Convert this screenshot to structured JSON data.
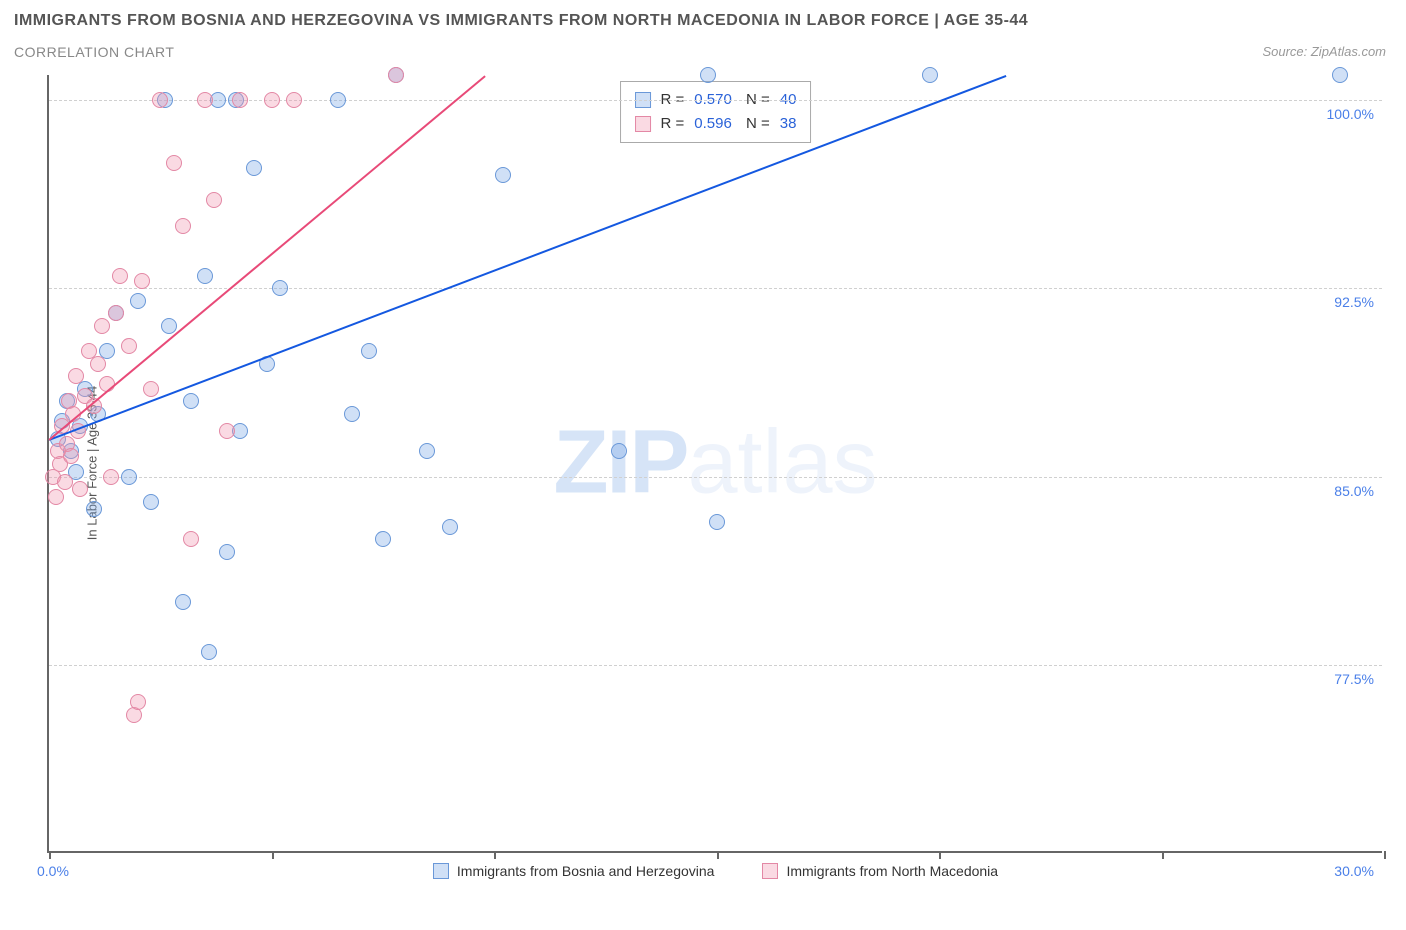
{
  "title": "IMMIGRANTS FROM BOSNIA AND HERZEGOVINA VS IMMIGRANTS FROM NORTH MACEDONIA IN LABOR FORCE | AGE 35-44",
  "subtitle": "CORRELATION CHART",
  "source": "Source: ZipAtlas.com",
  "yaxis_title": "In Labor Force | Age 35-44",
  "watermark_a": "ZIP",
  "watermark_b": "atlas",
  "chart": {
    "background_color": "#ffffff",
    "axis_color": "#666666",
    "grid_color": "#d0d0d0",
    "tick_label_color": "#4a7fe8",
    "xlim": [
      0.0,
      30.0
    ],
    "ylim": [
      70.0,
      101.0
    ],
    "x_ticks": [
      0.0,
      5.0,
      10.0,
      15.0,
      20.0,
      25.0,
      30.0
    ],
    "y_gridlines": [
      77.5,
      85.0,
      92.5,
      100.0
    ],
    "y_labels": [
      "77.5%",
      "85.0%",
      "92.5%",
      "100.0%"
    ],
    "x_min_label": "0.0%",
    "x_max_label": "30.0%",
    "point_radius": 8,
    "point_stroke_width": 1.5
  },
  "series": [
    {
      "id": "bosnia",
      "name": "Immigrants from Bosnia and Herzegovina",
      "fill": "rgba(120,165,230,0.35)",
      "stroke": "#6a98d8",
      "line_color": "#1458e0",
      "R": "0.570",
      "N": "40",
      "trend": {
        "x1": 0.0,
        "y1": 86.5,
        "x2": 21.5,
        "y2": 101.0
      },
      "points": [
        [
          0.2,
          86.5
        ],
        [
          0.3,
          87.2
        ],
        [
          0.5,
          86.0
        ],
        [
          0.4,
          88.0
        ],
        [
          0.6,
          85.2
        ],
        [
          0.7,
          87.0
        ],
        [
          0.8,
          88.5
        ],
        [
          1.0,
          83.7
        ],
        [
          1.1,
          87.5
        ],
        [
          1.3,
          90.0
        ],
        [
          1.5,
          91.5
        ],
        [
          1.8,
          85.0
        ],
        [
          2.0,
          92.0
        ],
        [
          2.3,
          84.0
        ],
        [
          2.6,
          100.0
        ],
        [
          2.7,
          91.0
        ],
        [
          3.0,
          80.0
        ],
        [
          3.2,
          88.0
        ],
        [
          3.5,
          93.0
        ],
        [
          3.6,
          78.0
        ],
        [
          3.8,
          100.0
        ],
        [
          4.0,
          82.0
        ],
        [
          4.2,
          100.0
        ],
        [
          4.3,
          86.8
        ],
        [
          4.6,
          97.3
        ],
        [
          4.9,
          89.5
        ],
        [
          5.2,
          92.5
        ],
        [
          6.5,
          100.0
        ],
        [
          6.8,
          87.5
        ],
        [
          7.2,
          90.0
        ],
        [
          7.5,
          82.5
        ],
        [
          7.8,
          101.0
        ],
        [
          8.5,
          86.0
        ],
        [
          9.0,
          83.0
        ],
        [
          10.2,
          97.0
        ],
        [
          12.8,
          86.0
        ],
        [
          14.8,
          101.0
        ],
        [
          15.0,
          83.2
        ],
        [
          19.8,
          101.0
        ],
        [
          29.0,
          101.0
        ]
      ]
    },
    {
      "id": "macedonia",
      "name": "Immigrants from North Macedonia",
      "fill": "rgba(240,150,175,0.35)",
      "stroke": "#e388a5",
      "line_color": "#e84a78",
      "R": "0.596",
      "N": "38",
      "trend": {
        "x1": 0.0,
        "y1": 86.5,
        "x2": 9.8,
        "y2": 101.0
      },
      "points": [
        [
          0.1,
          85.0
        ],
        [
          0.15,
          84.2
        ],
        [
          0.2,
          86.0
        ],
        [
          0.25,
          85.5
        ],
        [
          0.3,
          87.0
        ],
        [
          0.35,
          84.8
        ],
        [
          0.4,
          86.3
        ],
        [
          0.45,
          88.0
        ],
        [
          0.5,
          85.8
        ],
        [
          0.55,
          87.5
        ],
        [
          0.6,
          89.0
        ],
        [
          0.65,
          86.8
        ],
        [
          0.7,
          84.5
        ],
        [
          0.8,
          88.2
        ],
        [
          0.9,
          90.0
        ],
        [
          1.0,
          87.8
        ],
        [
          1.1,
          89.5
        ],
        [
          1.2,
          91.0
        ],
        [
          1.3,
          88.7
        ],
        [
          1.4,
          85.0
        ],
        [
          1.5,
          91.5
        ],
        [
          1.6,
          93.0
        ],
        [
          1.8,
          90.2
        ],
        [
          1.9,
          75.5
        ],
        [
          2.1,
          92.8
        ],
        [
          2.0,
          76.0
        ],
        [
          2.3,
          88.5
        ],
        [
          2.5,
          100.0
        ],
        [
          2.8,
          97.5
        ],
        [
          3.0,
          95.0
        ],
        [
          3.2,
          82.5
        ],
        [
          3.5,
          100.0
        ],
        [
          3.7,
          96.0
        ],
        [
          4.0,
          86.8
        ],
        [
          4.3,
          100.0
        ],
        [
          5.0,
          100.0
        ],
        [
          5.5,
          100.0
        ],
        [
          7.8,
          101.0
        ]
      ]
    }
  ],
  "bottom_legend": [
    {
      "swatch_fill": "rgba(120,165,230,0.35)",
      "swatch_stroke": "#6a98d8",
      "label": "Immigrants from Bosnia and Herzegovina"
    },
    {
      "swatch_fill": "rgba(240,150,175,0.35)",
      "swatch_stroke": "#e388a5",
      "label": "Immigrants from North Macedonia"
    }
  ]
}
